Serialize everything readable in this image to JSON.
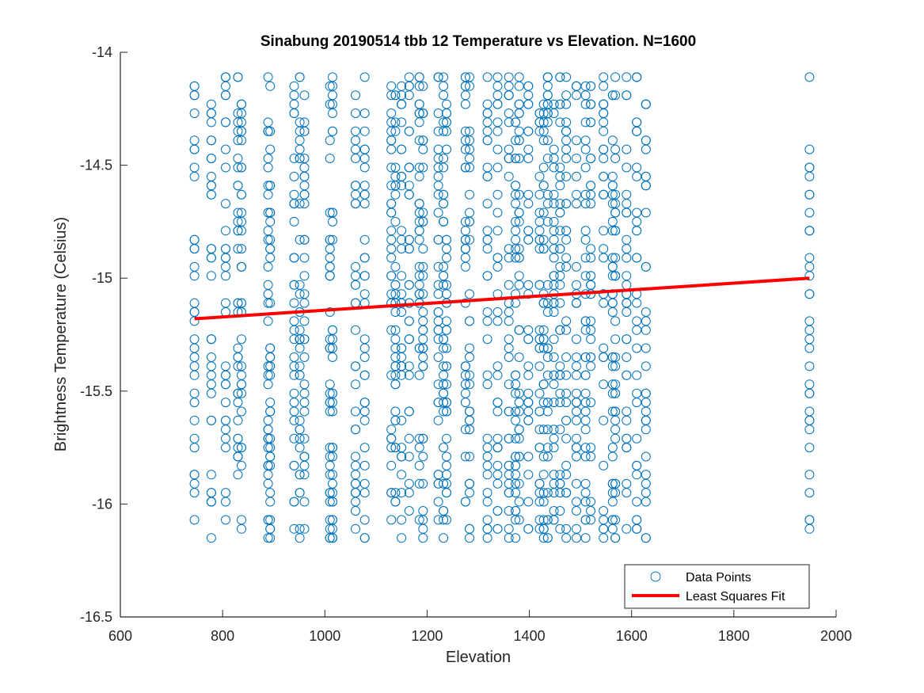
{
  "chart_data": {
    "type": "scatter",
    "title": "Sinabung 20190514 tbb 12 Temperature vs Elevation. N=1600",
    "xlabel": "Elevation",
    "ylabel": "Brightness Temperature (Celsius)",
    "xlim": [
      600,
      2000
    ],
    "ylim": [
      -16.5,
      -14
    ],
    "x_ticks": [
      600,
      800,
      1000,
      1200,
      1400,
      1600,
      1800,
      2000
    ],
    "y_ticks": [
      -16.5,
      -16,
      -15.5,
      -15,
      -14.5,
      -14
    ],
    "grid": false,
    "legend_position": "bottom-right",
    "colors": {
      "points": "#0072BD",
      "fit": "#FF0000",
      "axes": "#262626"
    },
    "series": [
      {
        "name": "Data Points",
        "marker": "open-circle",
        "x_columns": [
          745,
          778,
          806,
          830,
          837,
          889,
          893,
          940,
          951,
          960,
          1010,
          1015,
          1060,
          1078,
          1130,
          1138,
          1150,
          1165,
          1185,
          1192,
          1222,
          1232,
          1238,
          1275,
          1283,
          1318,
          1338,
          1360,
          1373,
          1380,
          1398,
          1420,
          1428,
          1436,
          1448,
          1460,
          1472,
          1492,
          1510,
          1520,
          1545,
          1563,
          1568,
          1590,
          1610,
          1628,
          1948
        ],
        "y_range": [
          -16.15,
          -14.1
        ],
        "mean": -15.1,
        "points_shown": 1600
      },
      {
        "name": "Least Squares Fit",
        "type": "line",
        "x": [
          745,
          1948
        ],
        "y": [
          -15.18,
          -15.0
        ]
      }
    ]
  }
}
